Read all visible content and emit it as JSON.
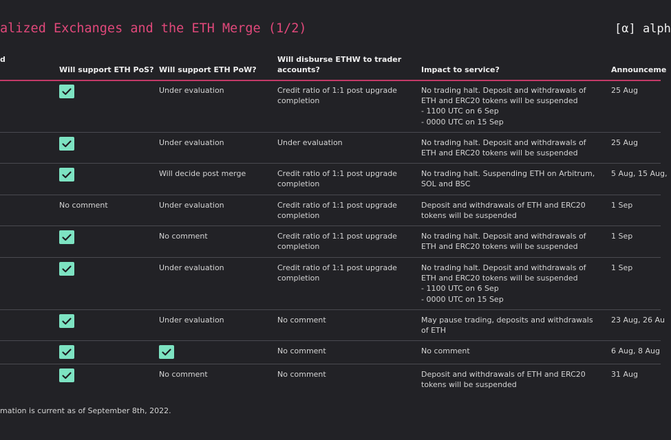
{
  "header": {
    "title": "alized Exchanges and the ETH Merge (1/2)",
    "brand": "[α] alph"
  },
  "columns": {
    "first": "d",
    "pos": "Will support ETH PoS?",
    "pow": "Will support ETH PoW?",
    "ethw": "Will disburse ETHW to trader\naccounts?",
    "impact": "Impact to service?",
    "announce": "Announceme"
  },
  "rows": [
    {
      "pos": {
        "check": true
      },
      "pow": {
        "check": false,
        "text": "Under evaluation"
      },
      "ethw": "Credit ratio of 1:1 post upgrade\ncompletion",
      "impact": "No trading halt. Deposit and withdrawals of\nETH and ERC20 tokens will be suspended\n- 1100 UTC on 6 Sep\n- 0000 UTC on 15 Sep",
      "announce": "25 Aug"
    },
    {
      "pos": {
        "check": true
      },
      "pow": {
        "check": false,
        "text": "Under evaluation"
      },
      "ethw": "Under evaluation",
      "impact": "No trading halt. Deposit and withdrawals of\nETH and ERC20 tokens will be suspended",
      "announce": "25 Aug"
    },
    {
      "pos": {
        "check": true
      },
      "pow": {
        "check": false,
        "text": "Will decide post merge"
      },
      "ethw": "Credit ratio of 1:1 post upgrade\ncompletion",
      "impact": "No trading halt. Suspending ETH on Arbitrum,\nSOL and BSC",
      "announce": "5 Aug, 15 Aug,"
    },
    {
      "pos": {
        "check": false,
        "text": "No comment"
      },
      "pow": {
        "check": false,
        "text": "Under evaluation"
      },
      "ethw": "Credit ratio of 1:1 post upgrade\ncompletion",
      "impact": "Deposit and withdrawals of ETH and ERC20\ntokens will be suspended",
      "announce": "1 Sep"
    },
    {
      "pos": {
        "check": true
      },
      "pow": {
        "check": false,
        "text": "No comment"
      },
      "ethw": "Credit ratio of 1:1 post upgrade\ncompletion",
      "impact": "No trading halt. Deposit and withdrawals of\nETH and ERC20 tokens will be suspended",
      "announce": "1 Sep"
    },
    {
      "pos": {
        "check": true
      },
      "pow": {
        "check": false,
        "text": "Under evaluation"
      },
      "ethw": "Credit ratio of 1:1 post upgrade\ncompletion",
      "impact": "No trading halt. Deposit and withdrawals of\nETH and ERC20 tokens will be suspended\n- 1100 UTC on 6 Sep\n- 0000 UTC on 15 Sep",
      "announce": "1 Sep"
    },
    {
      "pos": {
        "check": true
      },
      "pow": {
        "check": false,
        "text": "Under evaluation"
      },
      "ethw": "No comment",
      "impact": "May pause trading, deposits and withdrawals\nof ETH",
      "announce": "23 Aug, 26 Au"
    },
    {
      "pos": {
        "check": true
      },
      "pow": {
        "check": true
      },
      "ethw": "No comment",
      "impact": "No comment",
      "announce": "6 Aug, 8 Aug"
    },
    {
      "pos": {
        "check": true
      },
      "pow": {
        "check": false,
        "text": "No comment"
      },
      "ethw": "No comment",
      "impact": "Deposit and withdrawals of ETH and ERC20\ntokens will be suspended",
      "announce": "31 Aug"
    }
  ],
  "footnote": "mation is current as of September 8th, 2022."
}
